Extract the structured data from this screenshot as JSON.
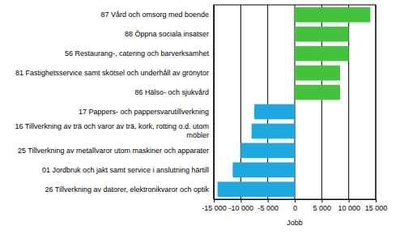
{
  "chart_data": {
    "type": "bar",
    "orientation": "horizontal",
    "categories": [
      "87 Vård och omsorg med boende",
      "88 Öppna sociala insatser",
      "56 Restaurang-, catering och barverksamhet",
      "81 Fastighetsservice samt skötsel och underhåll av grönytor",
      "86 Hälso- och sjukvård",
      "17 Pappers- och pappersvarutillverkning",
      "16 Tillverkning av trä och varor av trä, kork, rotting o.d. utom möbler",
      "25 Tillverkning av metallvaror utom maskiner och apparater",
      "01 Jordbruk och jakt samt service i anslutning härtill",
      "26 Tillverkning av datorer, elektronikvaror och optik"
    ],
    "values": [
      14000,
      10000,
      10000,
      8400,
      8400,
      -7500,
      -8000,
      -10000,
      -11500,
      -14300
    ],
    "colors": [
      "#44c23c",
      "#44c23c",
      "#44c23c",
      "#44c23c",
      "#44c23c",
      "#1ea8e0",
      "#1ea8e0",
      "#1ea8e0",
      "#1ea8e0",
      "#1ea8e0"
    ],
    "x_label": "Jobb",
    "xlim": [
      -15000,
      15000
    ],
    "xticks": [
      {
        "value": -15000,
        "label": "-15 000"
      },
      {
        "value": -10000,
        "label": "-10 000"
      },
      {
        "value": -5000,
        "label": "-5 000"
      },
      0,
      {
        "value": 5000,
        "label": "5 000"
      },
      {
        "value": 10000,
        "label": "10 000"
      },
      {
        "value": 15000,
        "label": "15 000"
      }
    ],
    "grid": true
  }
}
